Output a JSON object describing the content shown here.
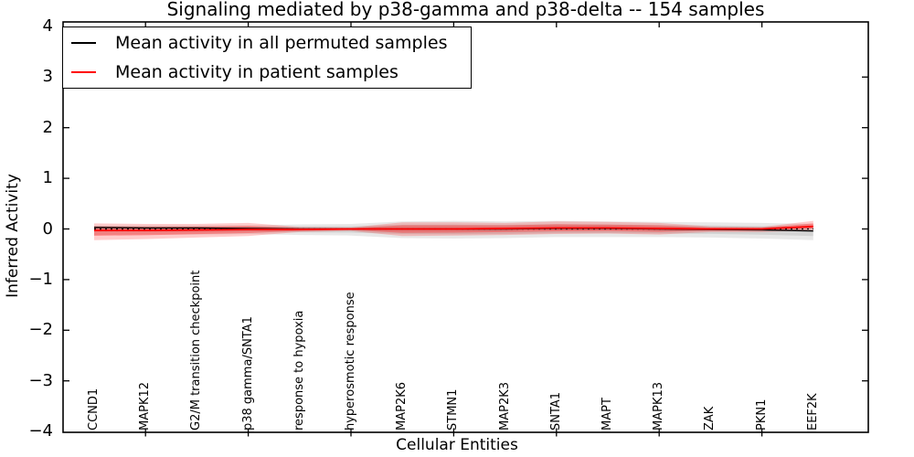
{
  "chart_data": {
    "type": "line",
    "title": "Signaling mediated by p38-gamma and p38-delta -- 154 samples",
    "xlabel": "Cellular Entities",
    "ylabel": "Inferred Activity",
    "ylim": [
      -4,
      4
    ],
    "yticks": [
      4,
      3,
      2,
      1,
      0,
      -1,
      -2,
      -3,
      -4
    ],
    "ytick_labels": [
      "4",
      "3",
      "2",
      "1",
      "0",
      "−1",
      "−2",
      "−3",
      "−4"
    ],
    "grid": false,
    "legend_position": "upper left",
    "categories": [
      "CCND1",
      "MAPK12",
      "G2/M transition checkpoint",
      "p38 gamma/SNTA1",
      "response to hypoxia",
      "hyperosmotic response",
      "MAP2K6",
      "STMN1",
      "MAP2K3",
      "SNTA1",
      "MAPT",
      "MAPK13",
      "ZAK",
      "PKN1",
      "EEF2K"
    ],
    "xticks_at_indices": [
      1,
      3,
      5,
      7,
      9,
      11,
      13
    ],
    "zero_line": {
      "value": 0,
      "style": "dotted",
      "color": "#000000"
    },
    "series": [
      {
        "name": "Mean activity in all permuted samples",
        "color": "#000000",
        "band_fill": "rgba(0,0,0,0.09)",
        "mean": [
          0.03,
          0.02,
          0.02,
          0.01,
          0.0,
          0.0,
          0.0,
          0.0,
          0.0,
          0.01,
          0.01,
          0.0,
          -0.01,
          -0.02,
          -0.04
        ],
        "upper": [
          0.07,
          0.07,
          0.07,
          0.07,
          0.09,
          0.1,
          0.15,
          0.16,
          0.15,
          0.16,
          0.15,
          0.14,
          0.13,
          0.12,
          0.1
        ],
        "lower": [
          -0.12,
          -0.11,
          -0.11,
          -0.1,
          -0.12,
          -0.13,
          -0.18,
          -0.19,
          -0.18,
          -0.16,
          -0.16,
          -0.16,
          -0.17,
          -0.19,
          -0.22
        ]
      },
      {
        "name": "Mean activity in patient samples",
        "color": "#ff0000",
        "band_fill": "rgba(255,0,0,0.20)",
        "mean": [
          -0.03,
          -0.03,
          -0.02,
          -0.01,
          -0.01,
          0.0,
          0.0,
          0.0,
          0.01,
          0.02,
          0.02,
          0.01,
          0.0,
          0.0,
          0.05
        ],
        "upper": [
          0.11,
          0.1,
          0.1,
          0.12,
          0.04,
          0.03,
          0.13,
          0.13,
          0.12,
          0.15,
          0.14,
          0.12,
          0.05,
          0.04,
          0.16
        ],
        "lower": [
          -0.22,
          -0.2,
          -0.17,
          -0.14,
          -0.06,
          -0.04,
          -0.14,
          -0.13,
          -0.12,
          -0.1,
          -0.09,
          -0.11,
          -0.06,
          -0.06,
          -0.02
        ]
      }
    ],
    "legend": [
      {
        "label": "Mean activity in all permuted samples",
        "color": "#000000"
      },
      {
        "label": "Mean activity in patient samples",
        "color": "#ff0000"
      }
    ]
  }
}
